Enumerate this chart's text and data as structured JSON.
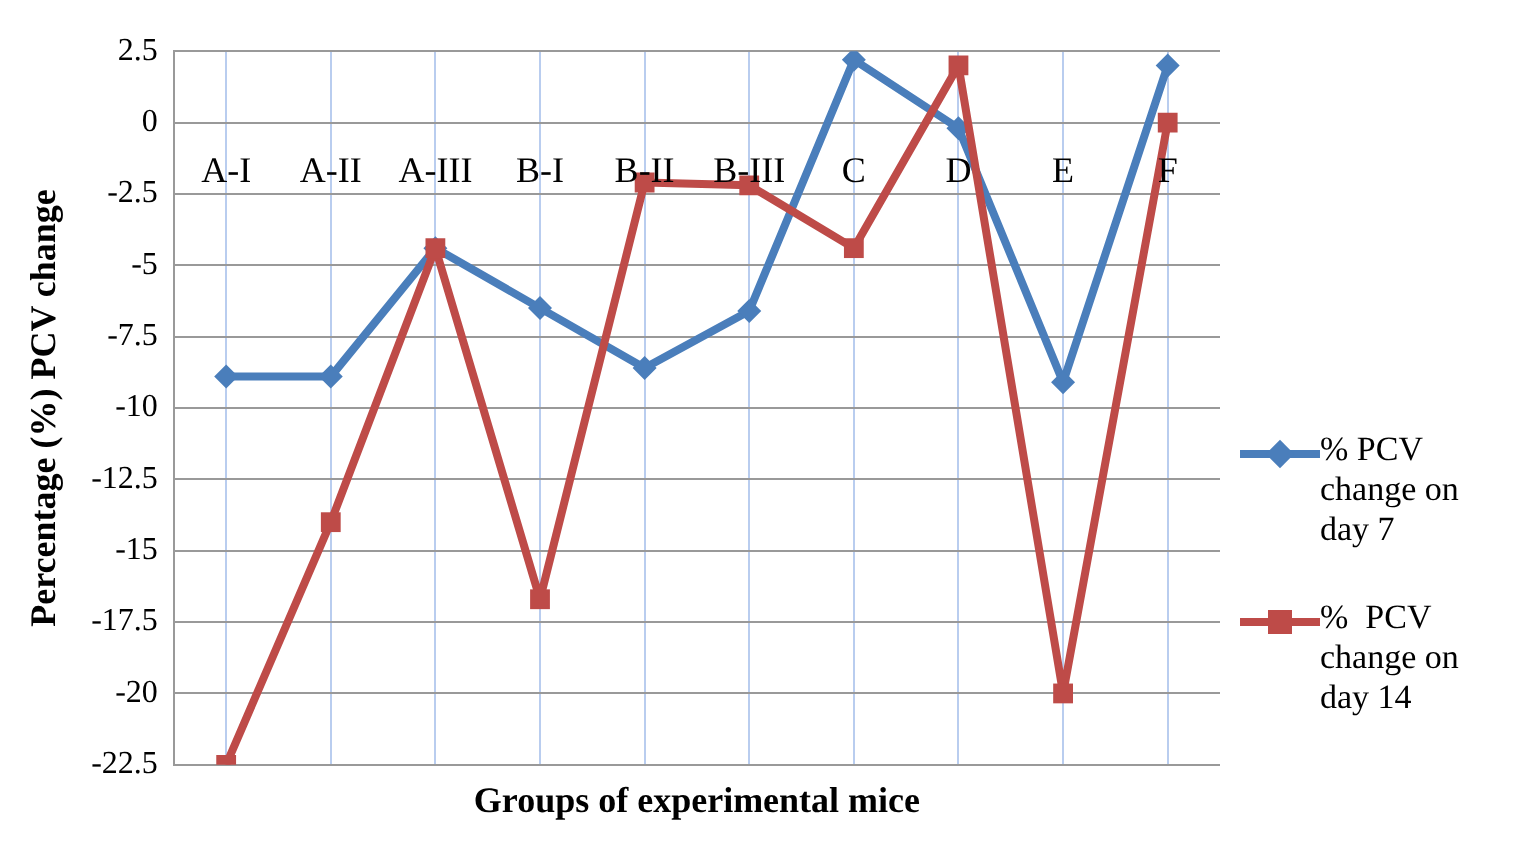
{
  "chart_data": {
    "type": "line",
    "xlabel": "Groups of experimental mice",
    "ylabel": "Percentage (%) PCV change",
    "categories": [
      "A-I",
      "A-II",
      "A-III",
      "B-I",
      "B-II",
      "B-III",
      "C",
      "D",
      "E",
      "F"
    ],
    "series": [
      {
        "name": "% PCV change on day 7",
        "color": "#4a7ebb",
        "marker": "diamond",
        "values": [
          -8.9,
          -8.9,
          -4.4,
          -6.5,
          -8.6,
          -6.6,
          2.2,
          -0.2,
          -9.1,
          2.0
        ]
      },
      {
        "name": "%  PCV change on day 14",
        "color": "#be4b48",
        "marker": "square",
        "values": [
          -22.5,
          -14.0,
          -4.4,
          -16.7,
          -2.1,
          -2.2,
          -4.4,
          2.0,
          -20.0,
          0
        ]
      }
    ],
    "ylim": [
      -22.5,
      2.5
    ],
    "yticks": [
      2.5,
      0,
      -2.5,
      -5,
      -7.5,
      -10,
      -12.5,
      -15,
      -17.5,
      -20,
      -22.5
    ],
    "grid": true,
    "legend": "right"
  }
}
